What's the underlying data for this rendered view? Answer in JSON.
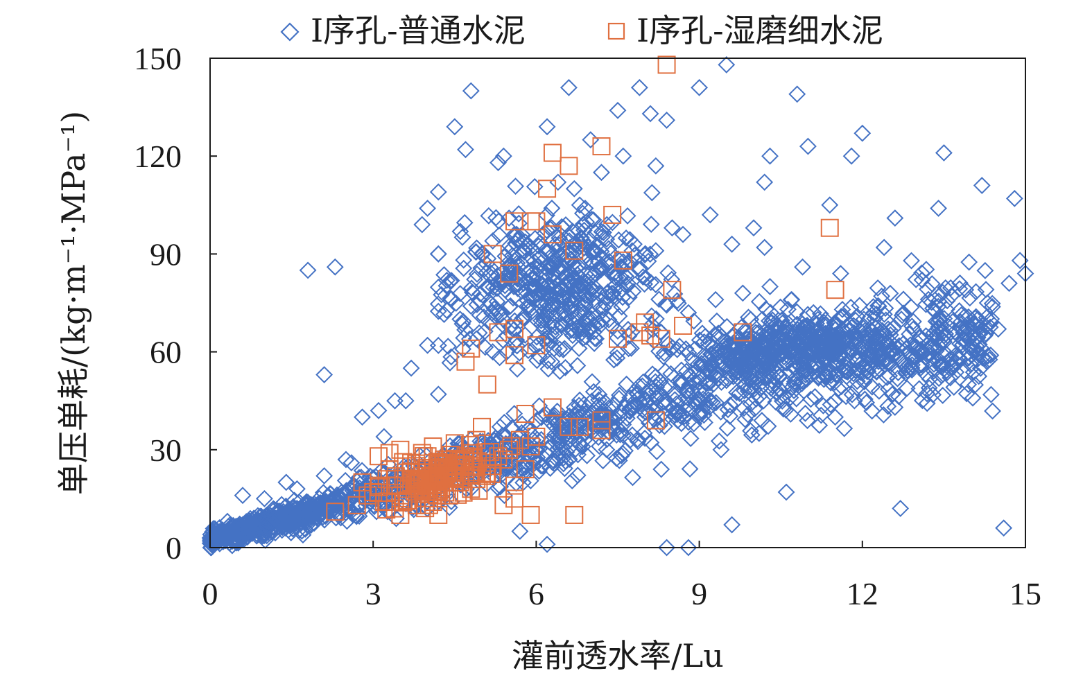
{
  "chart_data": {
    "type": "scatter",
    "xlabel": "灌前透水率/Lu",
    "ylabel": "单压单耗/(kg·m⁻¹·MPa⁻¹)",
    "xlim": [
      0,
      15
    ],
    "ylim": [
      0,
      150
    ],
    "xticks": [
      "0",
      "3",
      "6",
      "9",
      "12",
      "15"
    ],
    "yticks": [
      "0",
      "30",
      "60",
      "90",
      "120",
      "150"
    ],
    "grid": false,
    "legend_position": "top",
    "colors": {
      "series1": "#4472C4",
      "series2": "#E07040"
    },
    "series": [
      {
        "name": "Ⅰ序孔-普通水泥",
        "marker": "diamond",
        "points": [
          [
            1.8,
            85
          ],
          [
            2.3,
            86
          ],
          [
            2.1,
            53
          ],
          [
            4.8,
            140
          ],
          [
            4.5,
            129
          ],
          [
            4.7,
            122
          ],
          [
            5.3,
            118
          ],
          [
            5.4,
            120
          ],
          [
            6.6,
            141
          ],
          [
            7.5,
            134
          ],
          [
            7.9,
            141
          ],
          [
            8.4,
            131
          ],
          [
            8.1,
            133
          ],
          [
            6.2,
            129
          ],
          [
            7.0,
            125
          ],
          [
            9.5,
            148
          ],
          [
            9.0,
            141
          ],
          [
            10.8,
            139
          ],
          [
            11.0,
            123
          ],
          [
            12.0,
            127
          ],
          [
            11.8,
            120
          ],
          [
            13.5,
            121
          ],
          [
            14.2,
            111
          ],
          [
            14.8,
            107
          ],
          [
            13.4,
            104
          ],
          [
            12.6,
            101
          ],
          [
            12.4,
            92
          ],
          [
            11.4,
            105
          ],
          [
            9.2,
            102
          ],
          [
            9.6,
            93
          ],
          [
            10.2,
            112
          ],
          [
            10.3,
            120
          ],
          [
            4.2,
            109
          ],
          [
            4.0,
            104
          ],
          [
            3.9,
            99
          ],
          [
            4.2,
            90
          ],
          [
            6.1,
            75
          ],
          [
            6.2,
            80
          ],
          [
            5.9,
            85
          ],
          [
            6.8,
            105
          ],
          [
            6.5,
            98
          ],
          [
            7.2,
            115
          ],
          [
            7.6,
            120
          ],
          [
            8.2,
            117
          ],
          [
            8.5,
            98
          ],
          [
            8.7,
            96
          ],
          [
            12.7,
            12
          ],
          [
            14.6,
            6
          ],
          [
            10.6,
            17
          ],
          [
            9.6,
            7
          ],
          [
            6.2,
            1
          ],
          [
            8.4,
            0
          ],
          [
            8.8,
            0
          ],
          [
            5.7,
            5
          ],
          [
            3.4,
            45
          ],
          [
            3.6,
            45
          ],
          [
            3.1,
            42
          ],
          [
            2.8,
            40
          ],
          [
            3.7,
            55
          ],
          [
            4.0,
            62
          ],
          [
            5.2,
            60
          ],
          [
            4.2,
            47
          ],
          [
            3.2,
            34
          ],
          [
            2.6,
            26
          ],
          [
            0.6,
            16
          ],
          [
            1.0,
            15
          ],
          [
            1.4,
            20
          ],
          [
            1.6,
            18
          ],
          [
            2.1,
            22
          ],
          [
            2.5,
            27
          ],
          [
            13.1,
            82
          ],
          [
            12.3,
            74
          ],
          [
            11.6,
            84
          ],
          [
            10.9,
            86
          ],
          [
            13.9,
            79
          ],
          [
            14.3,
            75
          ],
          [
            14.9,
            88
          ],
          [
            15.0,
            84
          ],
          [
            14.7,
            81
          ],
          [
            14.5,
            67
          ],
          [
            11.5,
            40
          ],
          [
            12.6,
            43
          ],
          [
            10.1,
            35
          ],
          [
            9.4,
            30
          ],
          [
            8.3,
            24
          ],
          [
            8.9,
            38
          ],
          [
            9.7,
            54
          ],
          [
            10.4,
            60
          ],
          [
            11.2,
            62
          ],
          [
            12.1,
            65
          ],
          [
            12.8,
            61
          ],
          [
            13.4,
            67
          ],
          [
            13.9,
            65
          ],
          [
            14.1,
            64
          ],
          [
            11.7,
            54
          ],
          [
            10.8,
            50
          ],
          [
            9.9,
            48
          ],
          [
            9.2,
            45
          ],
          [
            8.6,
            42
          ],
          [
            8.0,
            40
          ],
          [
            7.4,
            37
          ],
          [
            6.9,
            35
          ],
          [
            6.4,
            33
          ],
          [
            5.8,
            31
          ],
          [
            5.3,
            29
          ],
          [
            4.9,
            27
          ],
          [
            4.4,
            25
          ],
          [
            4.0,
            23
          ],
          [
            3.6,
            21
          ],
          [
            3.2,
            19
          ],
          [
            2.8,
            17
          ],
          [
            2.4,
            15
          ],
          [
            2.0,
            13
          ],
          [
            1.6,
            11
          ],
          [
            1.2,
            9
          ],
          [
            0.8,
            7
          ],
          [
            0.4,
            5
          ],
          [
            0.1,
            3
          ],
          [
            0.2,
            4
          ],
          [
            0.5,
            6
          ],
          [
            5.5,
            101
          ],
          [
            5.6,
            96
          ],
          [
            5.2,
            94
          ],
          [
            5.0,
            90
          ],
          [
            6.7,
            110
          ],
          [
            6.4,
            112
          ],
          [
            6.9,
            104
          ],
          [
            7.3,
            99
          ],
          [
            7.8,
            93
          ],
          [
            8.2,
            91
          ],
          [
            7.0,
            84
          ],
          [
            6.7,
            82
          ],
          [
            6.3,
            86
          ],
          [
            5.9,
            92
          ],
          [
            5.6,
            88
          ],
          [
            5.1,
            80
          ],
          [
            4.8,
            74
          ],
          [
            4.6,
            70
          ],
          [
            4.9,
            64
          ],
          [
            5.4,
            68
          ],
          [
            5.9,
            72
          ],
          [
            6.4,
            74
          ],
          [
            6.8,
            68
          ],
          [
            7.1,
            64
          ],
          [
            7.7,
            61
          ],
          [
            8.3,
            66
          ],
          [
            8.8,
            72
          ],
          [
            9.3,
            76
          ],
          [
            9.8,
            78
          ],
          [
            10.3,
            80
          ],
          [
            10.7,
            76
          ],
          [
            11.1,
            72
          ],
          [
            11.6,
            70
          ],
          [
            12.2,
            68
          ],
          [
            10.2,
            92
          ],
          [
            10.0,
            98
          ]
        ]
      },
      {
        "name": "Ⅰ序孔-湿磨细水泥",
        "marker": "square",
        "points": [
          [
            8.4,
            148
          ],
          [
            6.3,
            121
          ],
          [
            6.6,
            117
          ],
          [
            7.2,
            123
          ],
          [
            6.2,
            110
          ],
          [
            7.4,
            102
          ],
          [
            5.6,
            100
          ],
          [
            5.9,
            100
          ],
          [
            6.0,
            100
          ],
          [
            6.3,
            96
          ],
          [
            6.7,
            91
          ],
          [
            7.6,
            88
          ],
          [
            5.2,
            90
          ],
          [
            5.5,
            84
          ],
          [
            8.5,
            79
          ],
          [
            11.4,
            98
          ],
          [
            11.5,
            79
          ],
          [
            9.8,
            66
          ],
          [
            8.7,
            68
          ],
          [
            8.0,
            69
          ],
          [
            7.9,
            66
          ],
          [
            8.1,
            65
          ],
          [
            8.3,
            64
          ],
          [
            7.5,
            64
          ],
          [
            5.6,
            67
          ],
          [
            5.3,
            66
          ],
          [
            6.0,
            62
          ],
          [
            5.6,
            59
          ],
          [
            4.8,
            61
          ],
          [
            4.7,
            57
          ],
          [
            5.1,
            50
          ],
          [
            8.2,
            39
          ],
          [
            7.2,
            39
          ],
          [
            7.2,
            36
          ],
          [
            6.6,
            37
          ],
          [
            6.8,
            37
          ],
          [
            6.3,
            43
          ],
          [
            5.8,
            41
          ],
          [
            5.0,
            37
          ],
          [
            6.7,
            10
          ],
          [
            5.9,
            10
          ],
          [
            5.6,
            15
          ],
          [
            5.4,
            13
          ],
          [
            4.2,
            10
          ],
          [
            3.5,
            10
          ],
          [
            2.3,
            11
          ],
          [
            2.8,
            20
          ],
          [
            3.1,
            28
          ],
          [
            3.3,
            29
          ],
          [
            3.5,
            30
          ],
          [
            3.7,
            26
          ],
          [
            3.9,
            29
          ],
          [
            4.1,
            31
          ],
          [
            4.3,
            27
          ],
          [
            4.5,
            32
          ],
          [
            4.7,
            24
          ],
          [
            4.9,
            21
          ],
          [
            5.1,
            26
          ],
          [
            5.3,
            28
          ],
          [
            5.5,
            30
          ],
          [
            5.7,
            33
          ],
          [
            5.9,
            31
          ],
          [
            3.0,
            17
          ],
          [
            3.2,
            14
          ],
          [
            3.4,
            21
          ],
          [
            3.6,
            18
          ],
          [
            3.8,
            13
          ],
          [
            4.0,
            19
          ],
          [
            4.2,
            23
          ],
          [
            4.4,
            16
          ],
          [
            4.6,
            20
          ],
          [
            4.8,
            18
          ],
          [
            5.0,
            22
          ],
          [
            5.2,
            25
          ],
          [
            5.4,
            27
          ],
          [
            5.6,
            19
          ],
          [
            5.8,
            24
          ],
          [
            6.0,
            34
          ],
          [
            2.7,
            13
          ],
          [
            2.9,
            16
          ],
          [
            3.1,
            19
          ],
          [
            3.3,
            24
          ],
          [
            3.5,
            16
          ],
          [
            3.7,
            20
          ],
          [
            3.9,
            22
          ],
          [
            4.1,
            14
          ],
          [
            4.3,
            20
          ],
          [
            4.5,
            25
          ],
          [
            4.7,
            28
          ],
          [
            4.9,
            33
          ],
          [
            3.4,
            12
          ],
          [
            3.6,
            23
          ],
          [
            3.8,
            25
          ],
          [
            4.0,
            28
          ],
          [
            4.2,
            17
          ],
          [
            4.4,
            24
          ]
        ]
      }
    ]
  }
}
